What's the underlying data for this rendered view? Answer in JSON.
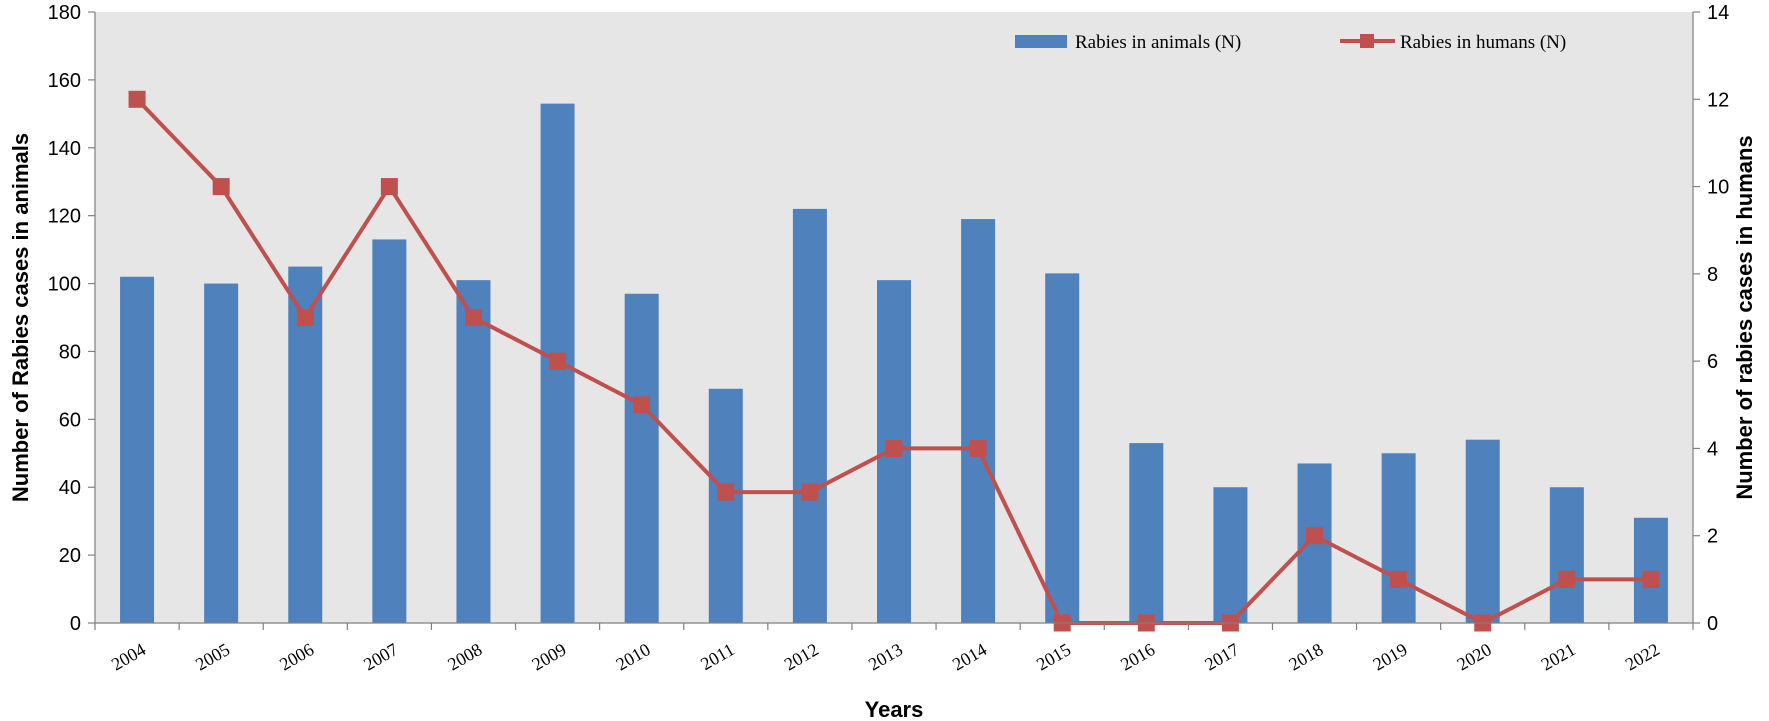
{
  "chart_data": {
    "type": "bar+line",
    "xlabel": "Years",
    "categories": [
      "2004",
      "2005",
      "2006",
      "2007",
      "2008",
      "2009",
      "2010",
      "2011",
      "2012",
      "2013",
      "2014",
      "2015",
      "2016",
      "2017",
      "2018",
      "2019",
      "2020",
      "2021",
      "2022"
    ],
    "series": [
      {
        "name": "Rabies in animals (N)",
        "type": "bar",
        "axis": "left",
        "color": "#4f81bd",
        "values": [
          102,
          100,
          105,
          113,
          101,
          153,
          97,
          69,
          122,
          101,
          119,
          103,
          53,
          40,
          47,
          50,
          54,
          40,
          31
        ]
      },
      {
        "name": "Rabies in humans (N)",
        "type": "line",
        "axis": "right",
        "color": "#c0504d",
        "values": [
          12,
          10,
          7,
          10,
          7,
          6,
          5,
          3,
          3,
          4,
          4,
          0,
          0,
          0,
          2,
          1,
          0,
          1,
          1
        ]
      }
    ],
    "y_left": {
      "label": "Number of Rabies cases in animals",
      "min": 0,
      "max": 180,
      "ticks": [
        0,
        20,
        40,
        60,
        80,
        100,
        120,
        140,
        160,
        180
      ]
    },
    "y_right": {
      "label": "Number of rabies cases in humans",
      "min": 0,
      "max": 14,
      "ticks": [
        0,
        2,
        4,
        6,
        8,
        10,
        12,
        14
      ]
    },
    "grid": false,
    "plot_background": "#e6e6e6",
    "legend": {
      "placement": "top-right"
    }
  }
}
